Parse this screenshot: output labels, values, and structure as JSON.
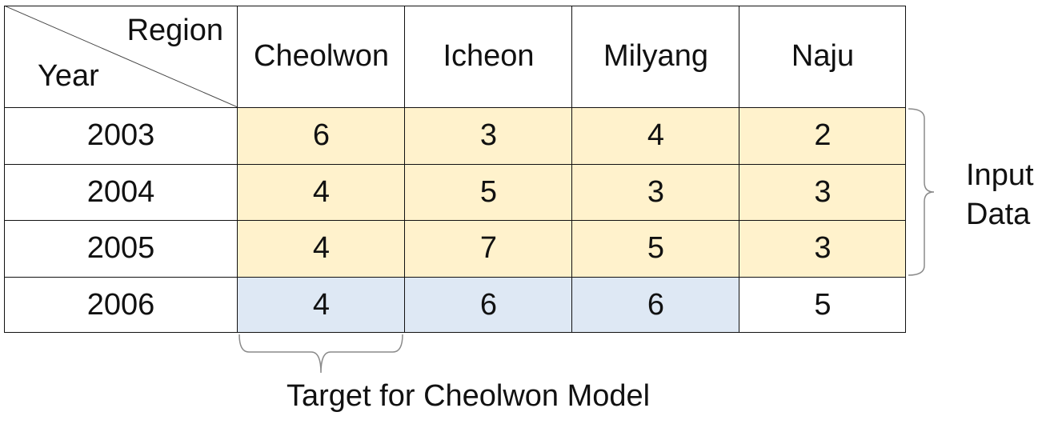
{
  "table": {
    "corner": {
      "column_header": "Region",
      "row_header": "Year"
    },
    "columns": [
      "Cheolwon",
      "Icheon",
      "Milyang",
      "Naju"
    ],
    "rows": [
      {
        "year": "2003",
        "values": [
          "6",
          "3",
          "4",
          "2"
        ],
        "highlight": [
          "input",
          "input",
          "input",
          "input"
        ]
      },
      {
        "year": "2004",
        "values": [
          "4",
          "5",
          "3",
          "3"
        ],
        "highlight": [
          "input",
          "input",
          "input",
          "input"
        ]
      },
      {
        "year": "2005",
        "values": [
          "4",
          "7",
          "5",
          "3"
        ],
        "highlight": [
          "input",
          "input",
          "input",
          "input"
        ]
      },
      {
        "year": "2006",
        "values": [
          "4",
          "6",
          "6",
          "5"
        ],
        "highlight": [
          "target",
          "target",
          "target",
          "none"
        ]
      }
    ]
  },
  "annotations": {
    "input_label_line1": "Input",
    "input_label_line2": "Data",
    "target_label": "Target for Cheolwon Model"
  },
  "colors": {
    "input": "#fff2cc",
    "target": "#dee8f4",
    "none": "#ffffff",
    "border": "#111111",
    "brace": "#8a8a8a"
  }
}
